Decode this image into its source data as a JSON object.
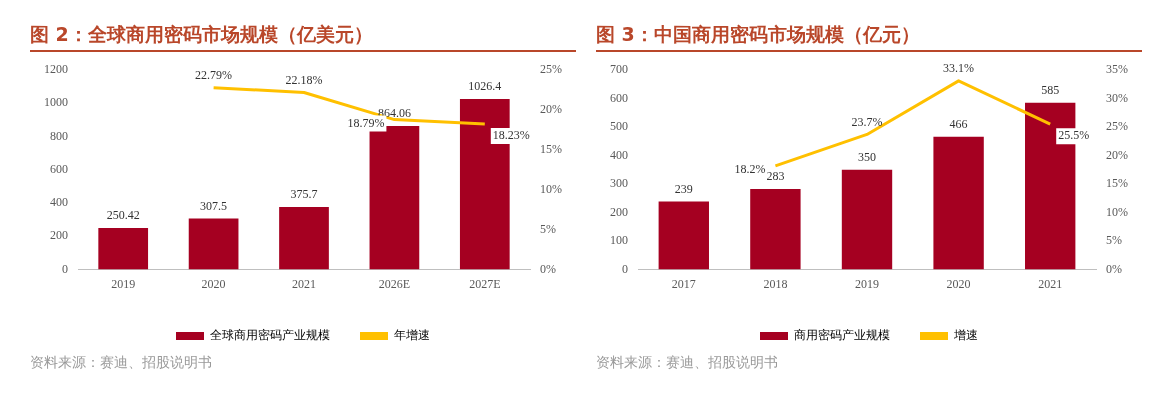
{
  "chart_data": [
    {
      "type": "bar",
      "title": "图 2：全球商用密码市场规模（亿美元）",
      "categories": [
        "2019",
        "2020",
        "2021",
        "2026E",
        "2027E"
      ],
      "series": [
        {
          "name": "全球商用密码产业规模",
          "color": "#a50021",
          "values": [
            250.42,
            307.5,
            375.7,
            864.06,
            1026.4
          ]
        },
        {
          "name": "年增速",
          "type": "line",
          "axis": "y2",
          "color": "#ffc000",
          "values": [
            null,
            22.79,
            22.18,
            18.79,
            18.23
          ],
          "value_labels": [
            null,
            "22.79%",
            "22.18%",
            "18.79%",
            "18.23%"
          ]
        }
      ],
      "ylim": [
        0,
        1200
      ],
      "yticks": [
        0,
        200,
        400,
        600,
        800,
        1000,
        1200
      ],
      "y2lim": [
        0,
        25
      ],
      "y2ticks": [
        {
          "value": 0,
          "label": "0%"
        },
        {
          "value": 5,
          "label": "5%"
        },
        {
          "value": 10,
          "label": "10%"
        },
        {
          "value": 15,
          "label": "15%"
        },
        {
          "value": 20,
          "label": "20%"
        },
        {
          "value": 25,
          "label": "25%"
        }
      ],
      "data_labels": true,
      "grid": false,
      "legend": "bottom",
      "marker": "none",
      "annotations": [
        "资料来源：赛迪、招股说明书"
      ]
    },
    {
      "type": "bar",
      "title": "图 3：中国商用密码市场规模（亿元）",
      "categories": [
        "2017",
        "2018",
        "2019",
        "2020",
        "2021"
      ],
      "series": [
        {
          "name": "商用密码产业规模",
          "color": "#a50021",
          "values": [
            239,
            283,
            350,
            466,
            585
          ]
        },
        {
          "name": "增速",
          "type": "line",
          "axis": "y2",
          "color": "#ffc000",
          "values": [
            null,
            18.2,
            23.7,
            33.1,
            25.5
          ],
          "value_labels": [
            null,
            "18.2%",
            "23.7%",
            "33.1%",
            "25.5%"
          ]
        }
      ],
      "ylim": [
        0,
        700
      ],
      "yticks": [
        0,
        100,
        200,
        300,
        400,
        500,
        600,
        700
      ],
      "y2lim": [
        0,
        35
      ],
      "y2ticks": [
        {
          "value": 0,
          "label": "0%"
        },
        {
          "value": 5,
          "label": "5%"
        },
        {
          "value": 10,
          "label": "10%"
        },
        {
          "value": 15,
          "label": "15%"
        },
        {
          "value": 20,
          "label": "20%"
        },
        {
          "value": 25,
          "label": "25%"
        },
        {
          "value": 30,
          "label": "30%"
        },
        {
          "value": 35,
          "label": "35%"
        }
      ],
      "data_labels": true,
      "grid": false,
      "legend": "bottom",
      "marker": "none",
      "annotations": [
        "资料来源：赛迪、招股说明书"
      ]
    }
  ]
}
